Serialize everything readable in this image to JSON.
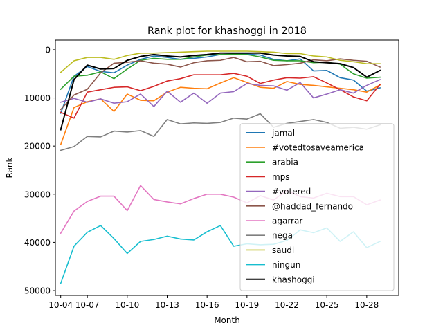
{
  "chart_data": {
    "type": "line",
    "title": "Rank plot for khashoggi in 2018",
    "xlabel": "Month",
    "ylabel": "Rank",
    "y_inverted": true,
    "ylim": [
      51000,
      -2000
    ],
    "xlim": [
      4.6,
      30.4
    ],
    "y_ticks": [
      0,
      10000,
      20000,
      30000,
      40000,
      50000
    ],
    "x_ticks": [
      5,
      7,
      10,
      13,
      16,
      19,
      22,
      25,
      28
    ],
    "x_tick_labels": [
      "10-04",
      "10-07",
      "10-10",
      "10-13",
      "10-16",
      "10-19",
      "10-22",
      "10-25",
      "10-28"
    ],
    "x_day_offset_note": "",
    "legend_position": "lower-right",
    "x": [
      5,
      6,
      7,
      8,
      9,
      10,
      11,
      12,
      13,
      14,
      15,
      16,
      17,
      18,
      19,
      20,
      21,
      22,
      23,
      24,
      25,
      26,
      27,
      28,
      29
    ],
    "series": [
      {
        "name": "jamal",
        "color": "#1f77b4",
        "values": [
          13200,
          5500,
          3500,
          4500,
          4800,
          3200,
          2000,
          1300,
          1600,
          2000,
          1800,
          1500,
          1000,
          900,
          900,
          1100,
          2000,
          2300,
          1900,
          4400,
          4300,
          5800,
          6300,
          8600,
          7900
        ]
      },
      {
        "name": "#votedtosaveamerica",
        "color": "#ff7f0e",
        "values": [
          19700,
          12000,
          10800,
          10200,
          12800,
          9200,
          10500,
          10600,
          8800,
          7800,
          8000,
          8100,
          6900,
          5800,
          6800,
          7800,
          8000,
          6600,
          7200,
          7400,
          7700,
          8000,
          8300,
          8800,
          7300
        ]
      },
      {
        "name": "arabia",
        "color": "#2ca02c",
        "values": [
          8200,
          5500,
          5300,
          4600,
          6000,
          4000,
          2200,
          1800,
          2000,
          2000,
          1500,
          1100,
          1000,
          900,
          1000,
          1500,
          2200,
          2300,
          2300,
          2700,
          2600,
          3000,
          5000,
          5900,
          5700
        ]
      },
      {
        "name": "mps",
        "color": "#d62728",
        "values": [
          13000,
          14200,
          8800,
          8300,
          7800,
          7700,
          8500,
          7600,
          6500,
          6000,
          5200,
          5200,
          5200,
          4900,
          5500,
          7000,
          6300,
          5800,
          5900,
          5600,
          6900,
          8300,
          9800,
          10600,
          7200
        ]
      },
      {
        "name": "#votered",
        "color": "#9467bd",
        "values": [
          10900,
          10100,
          10900,
          10200,
          11100,
          10800,
          9200,
          11800,
          8600,
          10900,
          9000,
          11100,
          9000,
          8700,
          7000,
          7400,
          7500,
          8400,
          6800,
          10000,
          9200,
          8300,
          9000,
          7400,
          6200
        ]
      },
      {
        "name": "@haddad_fernando",
        "color": "#8c564b",
        "values": [
          12400,
          9400,
          8200,
          4800,
          2800,
          2600,
          2300,
          2800,
          3000,
          3600,
          2700,
          2300,
          2200,
          1600,
          2500,
          2400,
          3300,
          3100,
          2800,
          2100,
          2300,
          1900,
          2200,
          2400,
          3600
        ]
      },
      {
        "name": "agarrar",
        "color": "#e377c2",
        "values": [
          38100,
          33500,
          31500,
          30400,
          30400,
          33400,
          28200,
          31100,
          31600,
          32000,
          30900,
          30000,
          30000,
          30600,
          31800,
          30300,
          31200,
          29200,
          30500,
          30800,
          29800,
          30500,
          30500,
          32200,
          31200
        ]
      },
      {
        "name": "nega",
        "color": "#7f7f7f",
        "values": [
          20900,
          20100,
          18000,
          18100,
          16900,
          17100,
          16800,
          18000,
          14500,
          15400,
          15200,
          15300,
          15100,
          14200,
          14400,
          13300,
          16100,
          15300,
          14900,
          14500,
          15100,
          16300,
          16100,
          16500,
          15600
        ]
      },
      {
        "name": "saudi",
        "color": "#bcbd22",
        "values": [
          4700,
          2300,
          1600,
          1600,
          2000,
          1200,
          700,
          700,
          600,
          500,
          400,
          300,
          300,
          300,
          300,
          400,
          500,
          800,
          800,
          1300,
          1500,
          2200,
          2500,
          2900,
          2900
        ]
      },
      {
        "name": "ningun",
        "color": "#17becf",
        "values": [
          48500,
          40800,
          37900,
          36500,
          39200,
          42300,
          39800,
          39400,
          38700,
          39300,
          39500,
          37800,
          36500,
          40800,
          40300,
          40500,
          40400,
          39600,
          37400,
          38000,
          37000,
          39800,
          37800,
          41100,
          39800
        ]
      },
      {
        "name": "khashoggi",
        "color": "#000000",
        "values": [
          16600,
          6200,
          3200,
          4000,
          3900,
          2200,
          1400,
          1000,
          1300,
          1500,
          1200,
          1000,
          700,
          700,
          700,
          700,
          1100,
          1300,
          1400,
          2500,
          2700,
          2900,
          3700,
          5700,
          4300
        ]
      }
    ]
  }
}
